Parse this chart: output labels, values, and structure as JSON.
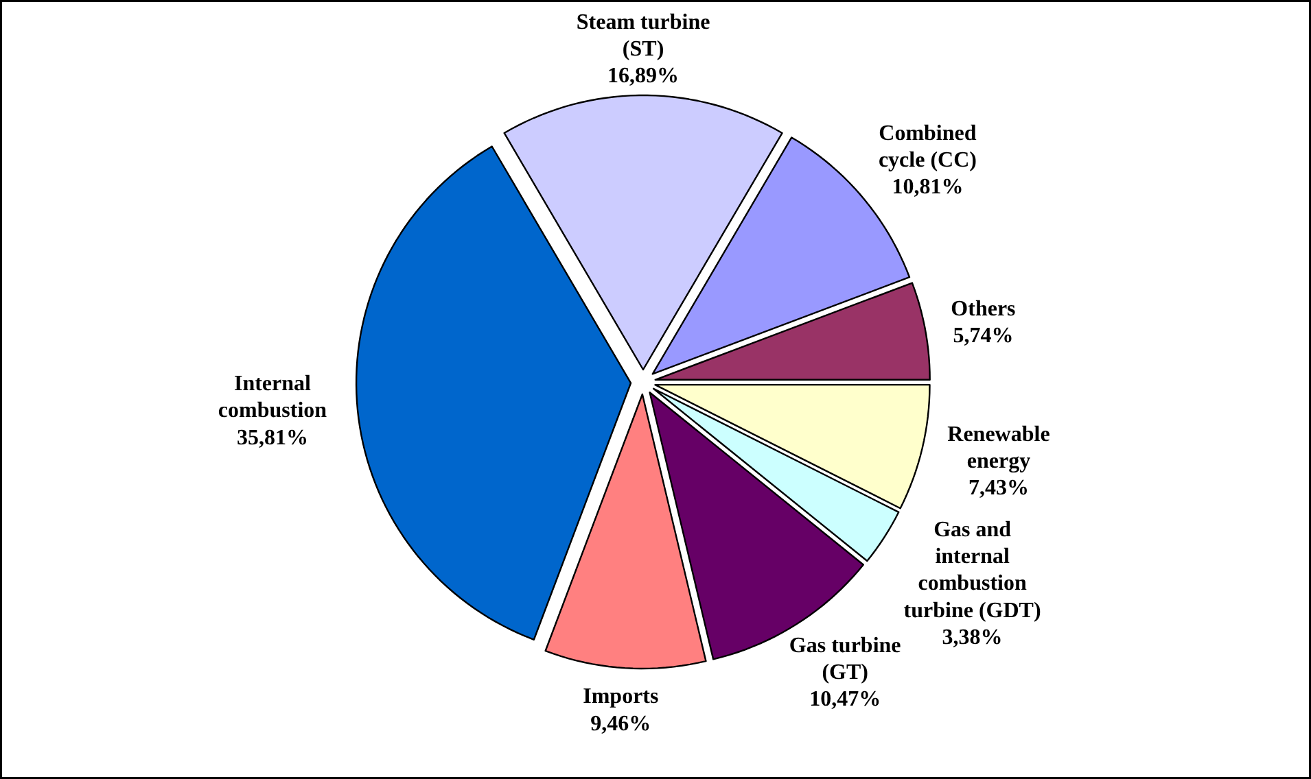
{
  "chart_data": {
    "type": "pie",
    "categories": [
      "Others",
      "Combined\ncycle (CC)",
      "Steam turbine\n(ST)",
      "Internal\ncombustion",
      "Imports",
      "Gas turbine\n(GT)",
      "Gas and\ninternal\ncombustion\nturbine (GDT)",
      "Renewable\nenergy"
    ],
    "values": [
      5.74,
      10.81,
      16.89,
      35.81,
      9.46,
      10.47,
      3.38,
      7.43
    ],
    "value_labels": [
      "5,74%",
      "10,81%",
      "16,89%",
      "35,81%",
      "9,46%",
      "10,47%",
      "3,38%",
      "7,43%"
    ],
    "colors": [
      "#993366",
      "#9999ff",
      "#ccccff",
      "#0066cc",
      "#ff8080",
      "#660066",
      "#ccffff",
      "#ffffcc"
    ]
  }
}
